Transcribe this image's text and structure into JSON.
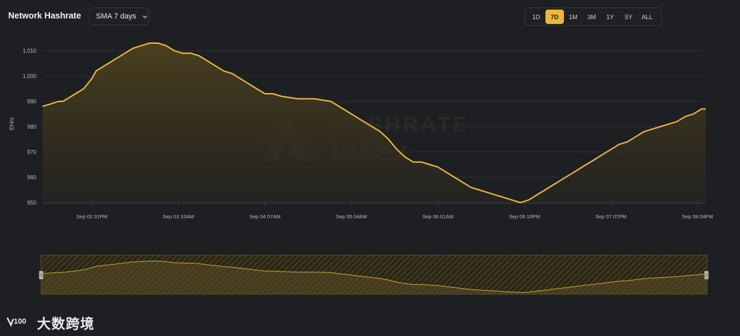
{
  "header": {
    "title": "Network Hashrate",
    "sma_label": "SMA 7 days",
    "ranges": [
      "1D",
      "7D",
      "1M",
      "3M",
      "1Y",
      "5Y",
      "ALL"
    ],
    "active_range": "7D"
  },
  "watermark": {
    "line1": "HASHRATE",
    "line2": "INDEX"
  },
  "footer": {
    "brand": "大数跨境",
    "mark": "100"
  },
  "colors": {
    "background": "#1e1f22",
    "line": "#e9b93d",
    "area_top": "#4a3f1f",
    "grid": "#2c2d31",
    "text": "#b9b9b9"
  },
  "chart_data": {
    "type": "area",
    "title": "Network Hashrate",
    "ylabel": "EH/s",
    "xlabel": "",
    "ylim": [
      950,
      1013
    ],
    "yticks": [
      950,
      960,
      970,
      980,
      990,
      1000,
      1010
    ],
    "ytick_labels": [
      "950",
      "960",
      "970",
      "980",
      "990",
      "1,000",
      "1,010"
    ],
    "xticks": [
      {
        "x": 12,
        "label": "Sep 02 01PM"
      },
      {
        "x": 33,
        "label": "Sep 03 10AM"
      },
      {
        "x": 54,
        "label": "Sep 04 07AM"
      },
      {
        "x": 75,
        "label": "Sep 05 04AM"
      },
      {
        "x": 96,
        "label": "Sep 06 01AM"
      },
      {
        "x": 117,
        "label": "Sep 06 10PM"
      },
      {
        "x": 138,
        "label": "Sep 07 07PM"
      },
      {
        "x": 159,
        "label": "Sep 08 04PM"
      }
    ],
    "x_unit": "hours since first point",
    "x": [
      0,
      2,
      4,
      5,
      8,
      10,
      12,
      13,
      16,
      18,
      20,
      22,
      24,
      26,
      28,
      30,
      32,
      34,
      36,
      38,
      40,
      42,
      44,
      46,
      48,
      50,
      52,
      54,
      56,
      58,
      62,
      66,
      70,
      72,
      74,
      76,
      78,
      80,
      82,
      84,
      86,
      88,
      90,
      92,
      94,
      96,
      98,
      100,
      102,
      104,
      106,
      108,
      110,
      112,
      114,
      116,
      117,
      118,
      120,
      122,
      124,
      126,
      128,
      130,
      132,
      134,
      136,
      138,
      140,
      142,
      144,
      146,
      148,
      150,
      152,
      154,
      156,
      158,
      159,
      160,
      161
    ],
    "series": [
      {
        "values": [
          988,
          989,
          990,
          990,
          993,
          995,
          999,
          1002,
          1005,
          1007,
          1009,
          1011,
          1012,
          1013,
          1013,
          1012,
          1010,
          1009,
          1009,
          1008,
          1006,
          1004,
          1002,
          1001,
          999,
          997,
          995,
          993,
          993,
          992,
          991,
          991,
          990,
          988,
          986,
          984,
          982,
          980,
          978,
          975,
          971,
          968,
          966,
          966,
          965,
          964,
          962,
          960,
          958,
          956,
          955,
          954,
          953,
          952,
          951,
          950,
          950.5,
          951,
          953,
          955,
          957,
          959,
          961,
          963,
          965,
          967,
          969,
          971,
          973,
          974,
          976,
          978,
          979,
          980,
          981,
          982,
          984,
          985,
          986,
          987,
          987
        ]
      }
    ],
    "navigator": true
  }
}
